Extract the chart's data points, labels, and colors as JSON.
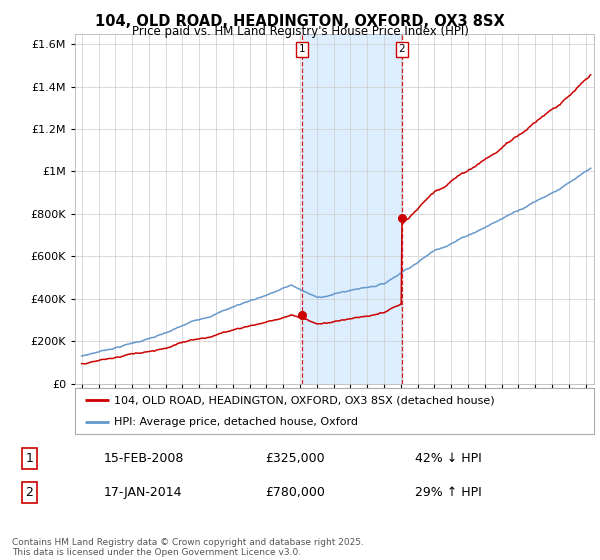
{
  "title": "104, OLD ROAD, HEADINGTON, OXFORD, OX3 8SX",
  "subtitle": "Price paid vs. HM Land Registry's House Price Index (HPI)",
  "legend_label_red": "104, OLD ROAD, HEADINGTON, OXFORD, OX3 8SX (detached house)",
  "legend_label_blue": "HPI: Average price, detached house, Oxford",
  "transaction1_date": "15-FEB-2008",
  "transaction1_price": "£325,000",
  "transaction1_hpi": "42% ↓ HPI",
  "transaction2_date": "17-JAN-2014",
  "transaction2_price": "£780,000",
  "transaction2_hpi": "29% ↑ HPI",
  "footer": "Contains HM Land Registry data © Crown copyright and database right 2025.\nThis data is licensed under the Open Government Licence v3.0.",
  "transaction1_x": 2008.12,
  "transaction2_x": 2014.05,
  "transaction1_y": 325000,
  "transaction2_y": 780000,
  "ylim": [
    0,
    1650000
  ],
  "yticks": [
    0,
    200000,
    400000,
    600000,
    800000,
    1000000,
    1200000,
    1400000,
    1600000
  ],
  "xlim_start": 1994.6,
  "xlim_end": 2025.5,
  "red_color": "#cc0000",
  "blue_color": "#6699cc",
  "shading_color": "#ddeeff",
  "grid_color": "#cccccc",
  "background_color": "#ffffff",
  "label_box_color": "#cc0000"
}
